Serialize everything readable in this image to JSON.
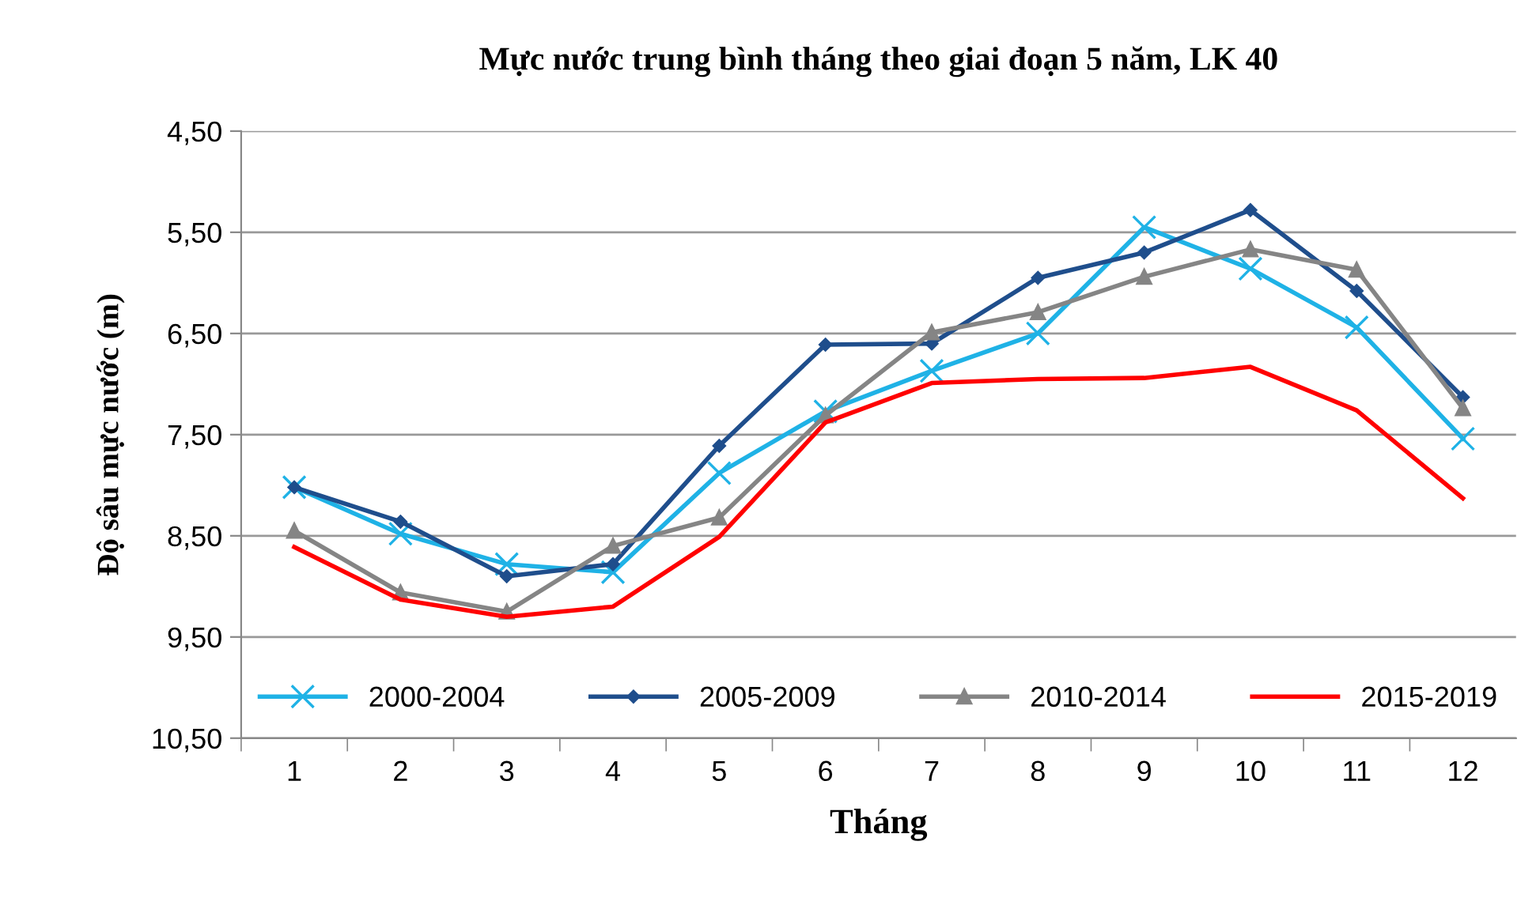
{
  "chart_data": {
    "type": "line",
    "title": "Mực nước trung bình tháng theo giai đoạn 5 năm, LK 40",
    "xlabel": "Tháng",
    "ylabel": "Độ sâu mực nước (m)",
    "categories": [
      "1",
      "2",
      "3",
      "4",
      "5",
      "6",
      "7",
      "8",
      "9",
      "10",
      "11",
      "12"
    ],
    "series": [
      {
        "name": "2000-2004",
        "color": "#1fb2e6",
        "marker": "cross",
        "values": [
          8.02,
          8.48,
          8.78,
          8.86,
          7.88,
          7.27,
          6.87,
          6.5,
          5.45,
          5.86,
          6.44,
          7.54
        ]
      },
      {
        "name": "2005-2009",
        "color": "#1f4e8c",
        "marker": "diamond",
        "values": [
          8.02,
          8.36,
          8.9,
          8.78,
          7.61,
          6.61,
          6.6,
          5.95,
          5.7,
          5.28,
          6.08,
          7.13
        ]
      },
      {
        "name": "2010-2014",
        "color": "#858585",
        "marker": "triangle",
        "values": [
          8.45,
          9.06,
          9.25,
          8.6,
          8.32,
          7.31,
          6.49,
          6.29,
          5.94,
          5.67,
          5.87,
          7.24
        ]
      },
      {
        "name": "2015-2019",
        "color": "#ff0000",
        "marker": "none",
        "values": [
          8.61,
          9.13,
          9.3,
          9.2,
          8.51,
          7.38,
          6.99,
          6.95,
          6.94,
          6.83,
          7.26,
          8.13
        ]
      }
    ],
    "ylim": [
      10.5,
      4.5
    ],
    "yticks": [
      {
        "value": 4.5,
        "label": "4,50"
      },
      {
        "value": 5.5,
        "label": "5,50"
      },
      {
        "value": 6.5,
        "label": "6,50"
      },
      {
        "value": 7.5,
        "label": "7,50"
      },
      {
        "value": 8.5,
        "label": "8,50"
      },
      {
        "value": 9.5,
        "label": "9,50"
      },
      {
        "value": 10.5,
        "label": "10,50"
      }
    ],
    "grid": "y",
    "legend": "bottom",
    "line_style": "solid"
  }
}
